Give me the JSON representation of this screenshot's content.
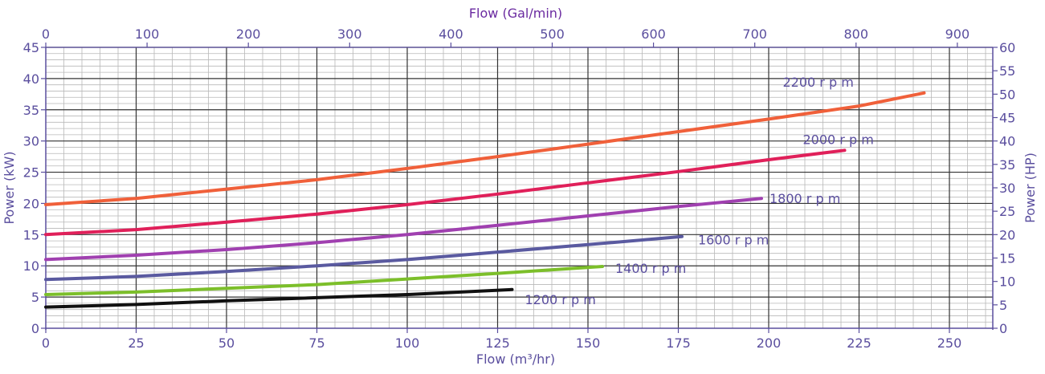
{
  "chart_data": {
    "type": "line",
    "xlabel_bottom": "Flow (m³/hr)",
    "xlabel_top": "Flow (Gal/min)",
    "ylabel_left": "Power (kW)",
    "ylabel_right": "Power (HP)",
    "xlim": [
      0,
      262
    ],
    "ylim": [
      0,
      45
    ],
    "xlim_top": [
      0,
      935
    ],
    "ylim_right": [
      0,
      60
    ],
    "x_ticks": [
      0,
      25,
      50,
      75,
      100,
      125,
      150,
      175,
      200,
      225,
      250
    ],
    "x_top_ticks": [
      0,
      100,
      200,
      300,
      400,
      500,
      600,
      700,
      800,
      900
    ],
    "y_ticks": [
      0,
      5,
      10,
      15,
      20,
      25,
      30,
      35,
      40,
      45
    ],
    "y_right_ticks": [
      0,
      5,
      10,
      15,
      20,
      25,
      30,
      35,
      40,
      45,
      50,
      55,
      60
    ],
    "grid": true,
    "text_color": "#5a4e9e",
    "top_axis_color": "#6a2aa0",
    "series": [
      {
        "name": "1200 r p m",
        "color": "#111111",
        "points": [
          [
            0,
            3.4
          ],
          [
            25,
            3.8
          ],
          [
            50,
            4.4
          ],
          [
            75,
            4.9
          ],
          [
            100,
            5.4
          ],
          [
            129,
            6.2
          ]
        ]
      },
      {
        "name": "1400 r p m",
        "color": "#7cbf2a",
        "points": [
          [
            0,
            5.4
          ],
          [
            25,
            5.8
          ],
          [
            50,
            6.4
          ],
          [
            75,
            7.0
          ],
          [
            100,
            7.9
          ],
          [
            125,
            8.8
          ],
          [
            154,
            9.9
          ]
        ]
      },
      {
        "name": "1600 r p m",
        "color": "#5a5aa0",
        "points": [
          [
            0,
            7.8
          ],
          [
            25,
            8.3
          ],
          [
            50,
            9.1
          ],
          [
            75,
            10.0
          ],
          [
            100,
            11.0
          ],
          [
            125,
            12.2
          ],
          [
            150,
            13.4
          ],
          [
            176,
            14.7
          ]
        ]
      },
      {
        "name": "1800 r p m",
        "color": "#a040b0",
        "points": [
          [
            0,
            11.0
          ],
          [
            25,
            11.7
          ],
          [
            50,
            12.6
          ],
          [
            75,
            13.7
          ],
          [
            100,
            15.0
          ],
          [
            125,
            16.5
          ],
          [
            150,
            18.0
          ],
          [
            175,
            19.5
          ],
          [
            198,
            20.8
          ]
        ]
      },
      {
        "name": "2000 r p m",
        "color": "#e0205a",
        "points": [
          [
            0,
            15.0
          ],
          [
            25,
            15.8
          ],
          [
            50,
            17.0
          ],
          [
            75,
            18.3
          ],
          [
            100,
            19.8
          ],
          [
            125,
            21.5
          ],
          [
            150,
            23.3
          ],
          [
            175,
            25.1
          ],
          [
            200,
            27.0
          ],
          [
            221,
            28.5
          ]
        ]
      },
      {
        "name": "2200 r p m",
        "color": "#f0603a",
        "points": [
          [
            0,
            19.8
          ],
          [
            25,
            20.8
          ],
          [
            50,
            22.3
          ],
          [
            75,
            23.8
          ],
          [
            100,
            25.6
          ],
          [
            125,
            27.5
          ],
          [
            150,
            29.5
          ],
          [
            175,
            31.5
          ],
          [
            200,
            33.5
          ],
          [
            225,
            35.6
          ],
          [
            243,
            37.7
          ]
        ]
      }
    ]
  }
}
